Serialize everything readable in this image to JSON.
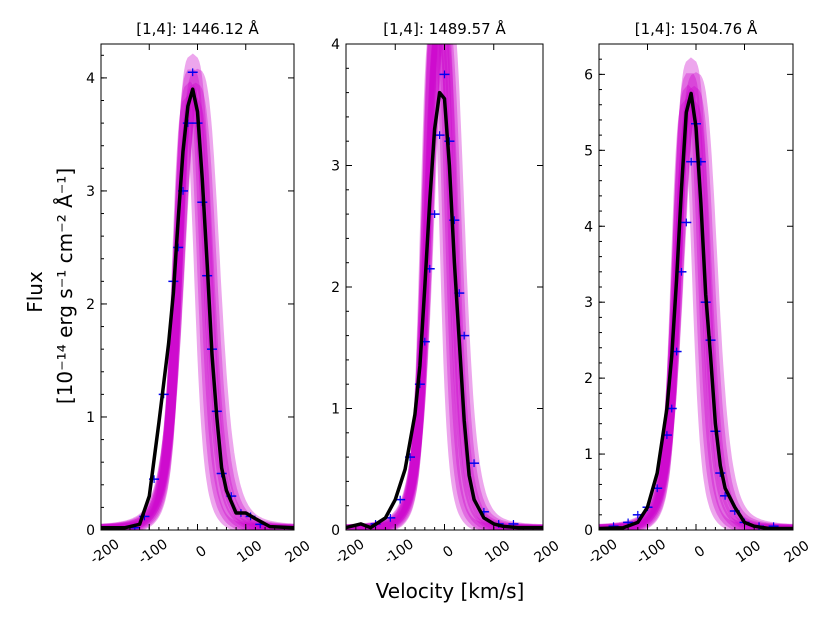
{
  "figure": {
    "xlabel": "Velocity [km/s]",
    "ylabel_line1": "Flux",
    "ylabel_line2": "[10⁻¹⁴ erg s⁻¹ cm⁻² Å⁻¹]"
  },
  "colors": {
    "model_draws": "#cc00cc",
    "best_fit": "#000000",
    "data_errorbars": "#0000ee"
  },
  "chart_data": [
    {
      "type": "line",
      "title": "[1,4]: 1446.12 Å",
      "xlim": [
        -200,
        200
      ],
      "ylim": [
        0,
        4.3
      ],
      "xticks": [
        -200,
        -100,
        0,
        100,
        200
      ],
      "xtick_labels": [
        "-200",
        "-100",
        "0",
        "100",
        "200"
      ],
      "yticks": [
        0,
        1,
        2,
        3,
        4
      ],
      "ytick_labels": [
        "0",
        "1",
        "2",
        "3",
        "4"
      ],
      "series": [
        {
          "name": "best-fit profile",
          "x": [
            -200,
            -150,
            -120,
            -100,
            -80,
            -60,
            -50,
            -40,
            -30,
            -20,
            -10,
            0,
            10,
            20,
            30,
            40,
            50,
            60,
            80,
            100,
            120,
            150,
            200
          ],
          "y": [
            0.02,
            0.02,
            0.05,
            0.3,
            0.95,
            1.65,
            2.1,
            2.75,
            3.35,
            3.75,
            3.9,
            3.7,
            3.1,
            2.35,
            1.55,
            1.0,
            0.55,
            0.35,
            0.15,
            0.15,
            0.1,
            0.03,
            0.02
          ]
        },
        {
          "name": "data points",
          "x": [
            -130,
            -110,
            -90,
            -70,
            -50,
            -40,
            -30,
            -20,
            -10,
            0,
            10,
            20,
            30,
            40,
            50,
            70,
            90,
            110,
            130
          ],
          "y": [
            0.02,
            0.12,
            0.45,
            1.2,
            2.2,
            2.5,
            3.0,
            3.6,
            4.05,
            3.6,
            2.9,
            2.25,
            1.6,
            1.05,
            0.5,
            0.3,
            0.15,
            0.12,
            0.05
          ]
        }
      ],
      "model_peak": 4.2,
      "model_width": 38
    },
    {
      "type": "line",
      "title": "[1,4]: 1489.57 Å",
      "xlim": [
        -200,
        200
      ],
      "ylim": [
        0,
        4.0
      ],
      "xticks": [
        -200,
        -100,
        0,
        100,
        200
      ],
      "xtick_labels": [
        "-200",
        "-100",
        "0",
        "100",
        "200"
      ],
      "yticks": [
        0,
        1,
        2,
        3,
        4
      ],
      "ytick_labels": [
        "0",
        "1",
        "2",
        "3",
        "4"
      ],
      "series": [
        {
          "name": "best-fit profile",
          "x": [
            -200,
            -170,
            -150,
            -120,
            -100,
            -80,
            -60,
            -50,
            -40,
            -30,
            -20,
            -10,
            0,
            10,
            20,
            30,
            40,
            50,
            60,
            80,
            100,
            120,
            150,
            200
          ],
          "y": [
            0.02,
            0.05,
            0.02,
            0.1,
            0.25,
            0.5,
            0.95,
            1.35,
            2.0,
            2.7,
            3.3,
            3.6,
            3.55,
            3.0,
            2.2,
            1.55,
            0.9,
            0.45,
            0.25,
            0.1,
            0.05,
            0.03,
            0.02,
            0.02
          ]
        },
        {
          "name": "data points",
          "x": [
            -140,
            -110,
            -90,
            -70,
            -50,
            -40,
            -30,
            -20,
            -10,
            0,
            10,
            20,
            30,
            40,
            60,
            80,
            110,
            140
          ],
          "y": [
            0.05,
            0.1,
            0.25,
            0.6,
            1.2,
            1.55,
            2.15,
            2.6,
            3.25,
            3.75,
            3.2,
            2.55,
            1.95,
            1.6,
            0.55,
            0.15,
            0.05,
            0.05
          ]
        }
      ],
      "model_peak": 4.6,
      "model_width": 32
    },
    {
      "type": "line",
      "title": "[1,4]: 1504.76 Å",
      "xlim": [
        -200,
        200
      ],
      "ylim": [
        0,
        6.4
      ],
      "xticks": [
        -200,
        -100,
        0,
        100,
        200
      ],
      "xtick_labels": [
        "-200",
        "-100",
        "0",
        "100",
        "200"
      ],
      "yticks": [
        0,
        1,
        2,
        3,
        4,
        5,
        6
      ],
      "ytick_labels": [
        "0",
        "1",
        "2",
        "3",
        "4",
        "5",
        "6"
      ],
      "series": [
        {
          "name": "best-fit profile",
          "x": [
            -200,
            -150,
            -120,
            -100,
            -80,
            -60,
            -50,
            -40,
            -30,
            -20,
            -10,
            0,
            10,
            20,
            30,
            40,
            50,
            60,
            80,
            100,
            120,
            150,
            200
          ],
          "y": [
            0.02,
            0.03,
            0.1,
            0.3,
            0.75,
            1.6,
            2.3,
            3.3,
            4.5,
            5.5,
            5.75,
            5.3,
            4.3,
            3.1,
            2.3,
            1.4,
            0.85,
            0.55,
            0.3,
            0.1,
            0.05,
            0.02,
            0.02
          ]
        },
        {
          "name": "data points",
          "x": [
            -170,
            -140,
            -120,
            -100,
            -80,
            -60,
            -50,
            -40,
            -30,
            -20,
            -10,
            0,
            10,
            20,
            30,
            40,
            50,
            60,
            80,
            100,
            130,
            160
          ],
          "y": [
            0.05,
            0.1,
            0.2,
            0.3,
            0.55,
            1.25,
            1.6,
            2.35,
            3.4,
            4.05,
            4.85,
            5.35,
            4.85,
            3.0,
            2.5,
            1.3,
            0.75,
            0.45,
            0.25,
            0.1,
            0.05,
            0.05
          ]
        }
      ],
      "model_peak": 6.2,
      "model_width": 36
    }
  ]
}
